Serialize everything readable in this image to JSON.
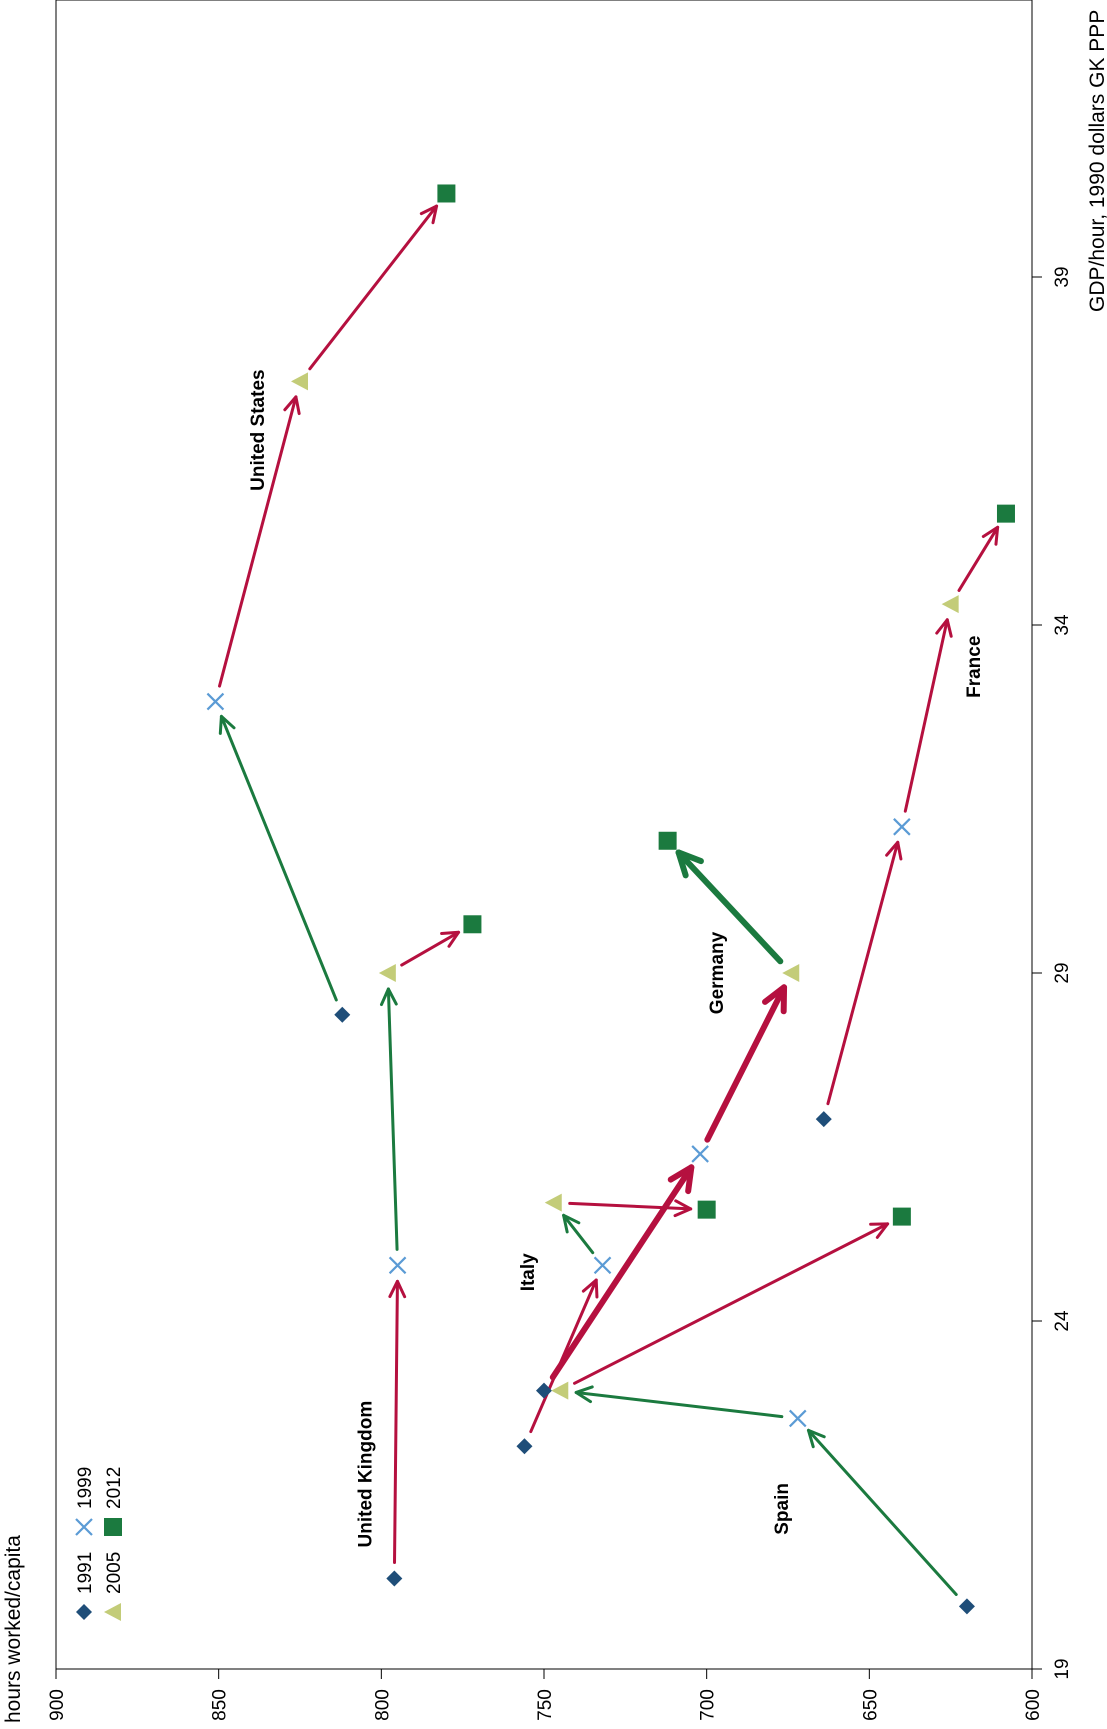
{
  "chart_data": {
    "type": "scatter",
    "orientation": "rotated-90-clockwise",
    "title": "",
    "hours_label": "hours worked/capita",
    "gdp_label": "GDP/hour, 1990 dollars GK PPP",
    "hours_range": [
      600,
      900
    ],
    "gdp_range": [
      19,
      40.2
    ],
    "hours_ticks": [
      "900",
      "850",
      "800",
      "750",
      "700",
      "650",
      "600"
    ],
    "hours_tick_values": [
      900,
      850,
      800,
      750,
      700,
      650,
      600
    ],
    "gdp_ticks": [
      "19",
      "24",
      "29",
      "34",
      "39"
    ],
    "gdp_tick_values": [
      19,
      24,
      29,
      34,
      39
    ],
    "grid": false,
    "legend_placement": "lower-left",
    "legend": [
      {
        "label": "1991",
        "marker": "diamond",
        "color": "#1f4e79"
      },
      {
        "label": "1999",
        "marker": "x",
        "color": "#5b9bd5"
      },
      {
        "label": "2005",
        "marker": "triangle",
        "color": "#c3cc78"
      },
      {
        "label": "2012",
        "marker": "square",
        "color": "#1b7a3f"
      }
    ],
    "colors": {
      "increase": "#1b7a3f",
      "decrease": "#b5103f"
    },
    "series": [
      {
        "name": "United States",
        "label_at": {
          "hours": 836,
          "gdp": 36.8
        },
        "points": [
          {
            "year": "1991",
            "hours": 812,
            "gdp": 28.4
          },
          {
            "year": "1999",
            "hours": 851,
            "gdp": 32.9
          },
          {
            "year": "2005",
            "hours": 825,
            "gdp": 37.5
          },
          {
            "year": "2012",
            "hours": 780,
            "gdp": 40.2
          }
        ]
      },
      {
        "name": "United Kingdom",
        "label_at": {
          "hours": 803,
          "gdp": 21.8
        },
        "points": [
          {
            "year": "1991",
            "hours": 796,
            "gdp": 20.3
          },
          {
            "year": "1999",
            "hours": 795,
            "gdp": 24.8
          },
          {
            "year": "2005",
            "hours": 798,
            "gdp": 29.0
          },
          {
            "year": "2012",
            "hours": 772,
            "gdp": 29.7
          }
        ]
      },
      {
        "name": "Italy",
        "label_at": {
          "hours": 753,
          "gdp": 24.7
        },
        "points": [
          {
            "year": "1991",
            "hours": 756,
            "gdp": 22.2
          },
          {
            "year": "1999",
            "hours": 732,
            "gdp": 24.8
          },
          {
            "year": "2005",
            "hours": 747,
            "gdp": 25.7
          },
          {
            "year": "2012",
            "hours": 700,
            "gdp": 25.6
          }
        ]
      },
      {
        "name": "Germany",
        "label_at": {
          "hours": 695,
          "gdp": 29.0
        },
        "points": [
          {
            "year": "1991",
            "hours": 750,
            "gdp": 23.0
          },
          {
            "year": "1999",
            "hours": 702,
            "gdp": 26.4
          },
          {
            "year": "2005",
            "hours": 674,
            "gdp": 29.0
          },
          {
            "year": "2012",
            "hours": 712,
            "gdp": 30.9
          }
        ]
      },
      {
        "name": "Spain",
        "label_at": {
          "hours": 675,
          "gdp": 21.3
        },
        "points": [
          {
            "year": "1991",
            "hours": 620,
            "gdp": 19.9
          },
          {
            "year": "1999",
            "hours": 672,
            "gdp": 22.6
          },
          {
            "year": "2005",
            "hours": 745,
            "gdp": 23.0
          },
          {
            "year": "2012",
            "hours": 640,
            "gdp": 25.5
          }
        ]
      },
      {
        "name": "France",
        "label_at": {
          "hours": 616,
          "gdp": 33.4
        },
        "points": [
          {
            "year": "1991",
            "hours": 664,
            "gdp": 26.9
          },
          {
            "year": "1999",
            "hours": 640,
            "gdp": 31.1
          },
          {
            "year": "2005",
            "hours": 625,
            "gdp": 34.3
          },
          {
            "year": "2012",
            "hours": 608,
            "gdp": 35.6
          }
        ]
      }
    ]
  }
}
